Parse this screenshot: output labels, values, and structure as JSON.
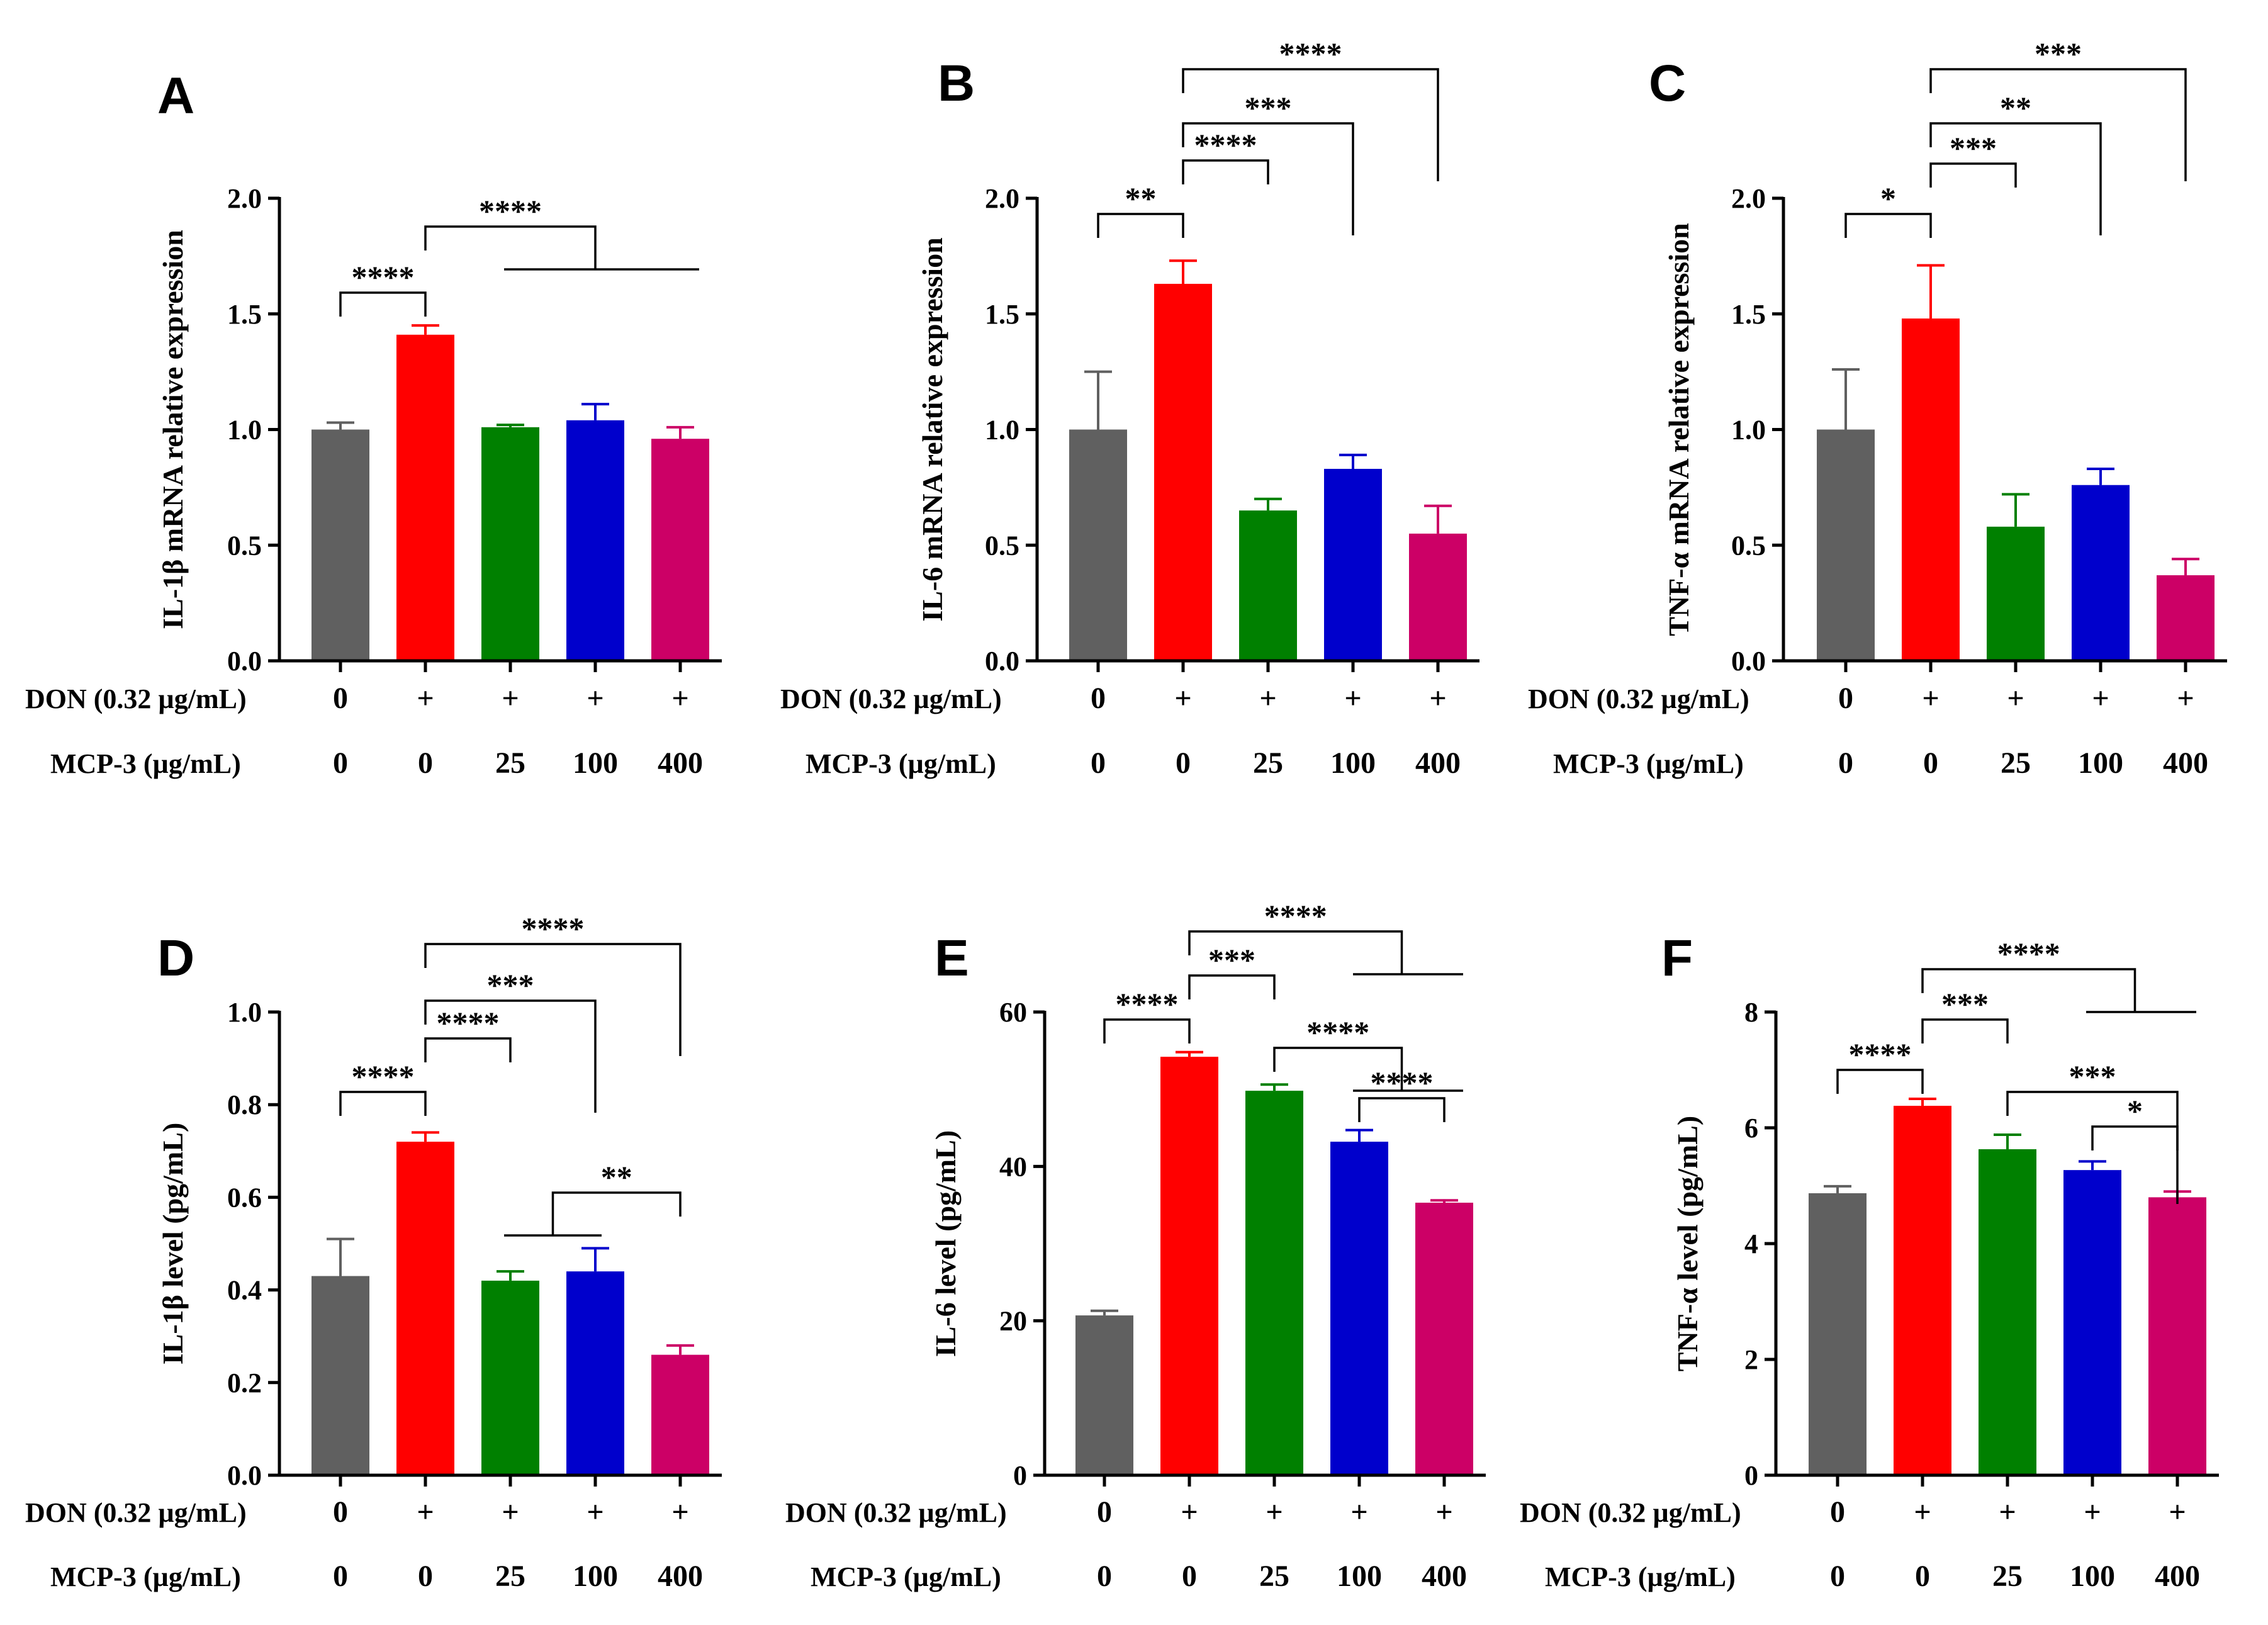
{
  "figure": {
    "row_labels": {
      "don": "DON (0.32 µg/mL)",
      "mcp": "MCP-3 (µg/mL)"
    },
    "groups": {
      "don": [
        "0",
        "+",
        "+",
        "+",
        "+"
      ],
      "mcp": [
        "0",
        "0",
        "25",
        "100",
        "400"
      ]
    },
    "bar_colors": [
      "#606060",
      "#ff0000",
      "#008000",
      "#0000cc",
      "#cc0066"
    ]
  },
  "chart_data": [
    {
      "panel": "A",
      "type": "bar",
      "ylabel": "IL-1β mRNA relative expression",
      "ylim": [
        0,
        2.0
      ],
      "yticks": [
        0.0,
        0.5,
        1.0,
        1.5,
        2.0
      ],
      "yticklabels": [
        "0.0",
        "0.5",
        "1.0",
        "1.5",
        "2.0"
      ],
      "values": [
        1.0,
        1.41,
        1.01,
        1.04,
        0.96
      ],
      "errors": [
        0.03,
        0.04,
        0.01,
        0.07,
        0.05
      ],
      "significance": [
        {
          "from": 0,
          "to": 1,
          "label": "****"
        },
        {
          "from": 1,
          "to": [
            2,
            3,
            4
          ],
          "label": "****"
        }
      ]
    },
    {
      "panel": "B",
      "type": "bar",
      "ylabel": "IL-6 mRNA relative expression",
      "ylim": [
        0,
        2.0
      ],
      "yticks": [
        0.0,
        0.5,
        1.0,
        1.5,
        2.0
      ],
      "yticklabels": [
        "0.0",
        "0.5",
        "1.0",
        "1.5",
        "2.0"
      ],
      "values": [
        1.0,
        1.63,
        0.65,
        0.83,
        0.55
      ],
      "errors": [
        0.25,
        0.1,
        0.05,
        0.06,
        0.12
      ],
      "significance": [
        {
          "from": 0,
          "to": 1,
          "label": "**"
        },
        {
          "from": 1,
          "to": 2,
          "label": "****"
        },
        {
          "from": 1,
          "to": 3,
          "label": "***"
        },
        {
          "from": 1,
          "to": 4,
          "label": "****"
        }
      ]
    },
    {
      "panel": "C",
      "type": "bar",
      "ylabel": "TNF-α mRNA relative expression",
      "ylim": [
        0,
        2.0
      ],
      "yticks": [
        0.0,
        0.5,
        1.0,
        1.5,
        2.0
      ],
      "yticklabels": [
        "0.0",
        "0.5",
        "1.0",
        "1.5",
        "2.0"
      ],
      "values": [
        1.0,
        1.48,
        0.58,
        0.76,
        0.37
      ],
      "errors": [
        0.26,
        0.23,
        0.14,
        0.07,
        0.07
      ],
      "significance": [
        {
          "from": 0,
          "to": 1,
          "label": "*"
        },
        {
          "from": 1,
          "to": 2,
          "label": "***"
        },
        {
          "from": 1,
          "to": 3,
          "label": "**"
        },
        {
          "from": 1,
          "to": 4,
          "label": "***"
        }
      ]
    },
    {
      "panel": "D",
      "type": "bar",
      "ylabel": "IL-1β level (pg/mL)",
      "ylim": [
        0,
        1.0
      ],
      "yticks": [
        0.0,
        0.2,
        0.4,
        0.6,
        0.8,
        1.0
      ],
      "yticklabels": [
        "0.0",
        "0.2",
        "0.4",
        "0.6",
        "0.8",
        "1.0"
      ],
      "values": [
        0.43,
        0.72,
        0.42,
        0.44,
        0.26
      ],
      "errors": [
        0.08,
        0.02,
        0.02,
        0.05,
        0.02
      ],
      "significance": [
        {
          "from": 0,
          "to": 1,
          "label": "****"
        },
        {
          "from": 1,
          "to": 2,
          "label": "****"
        },
        {
          "from": 1,
          "to": 3,
          "label": "***"
        },
        {
          "from": 1,
          "to": 4,
          "label": "****"
        },
        {
          "from": [
            2,
            3
          ],
          "to": 4,
          "label": "**"
        }
      ]
    },
    {
      "panel": "E",
      "type": "bar",
      "ylabel": "IL-6 level (pg/mL)",
      "ylim": [
        0,
        60
      ],
      "yticks": [
        0,
        20,
        40,
        60
      ],
      "yticklabels": [
        "0",
        "20",
        "40",
        "60"
      ],
      "values": [
        20.7,
        54.2,
        49.8,
        43.2,
        35.3
      ],
      "errors": [
        0.6,
        0.6,
        0.8,
        1.5,
        0.3
      ],
      "significance": [
        {
          "from": 0,
          "to": 1,
          "label": "****"
        },
        {
          "from": 1,
          "to": 2,
          "label": "***"
        },
        {
          "from": 1,
          "to": [
            3,
            4
          ],
          "label": "****"
        },
        {
          "from": 2,
          "to": [
            3,
            4
          ],
          "label": "****"
        },
        {
          "from": 3,
          "to": 4,
          "label": "****"
        }
      ]
    },
    {
      "panel": "F",
      "type": "bar",
      "ylabel": "TNF-α level (pg/mL)",
      "ylim": [
        0,
        8
      ],
      "yticks": [
        0,
        2,
        4,
        6,
        8
      ],
      "yticklabels": [
        "0",
        "2",
        "4",
        "6",
        "8"
      ],
      "values": [
        4.87,
        6.38,
        5.63,
        5.27,
        4.8
      ],
      "errors": [
        0.12,
        0.12,
        0.25,
        0.15,
        0.1
      ],
      "significance": [
        {
          "from": 0,
          "to": 1,
          "label": "****"
        },
        {
          "from": 1,
          "to": 2,
          "label": "***"
        },
        {
          "from": 1,
          "to": [
            3,
            4
          ],
          "label": "****"
        },
        {
          "from": 2,
          "to": 4,
          "label": "***"
        },
        {
          "from": 3,
          "to": 4,
          "label": "*"
        }
      ]
    }
  ]
}
